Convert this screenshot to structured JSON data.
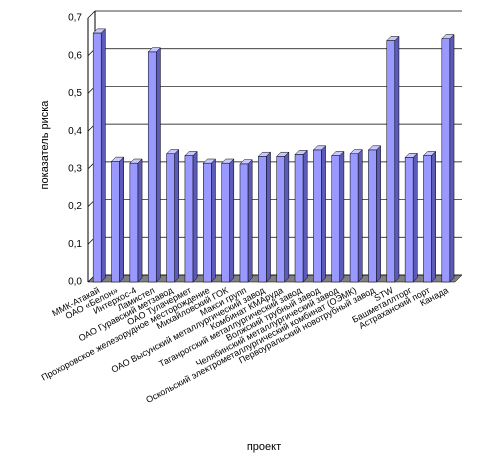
{
  "chart_data": {
    "type": "bar",
    "categories": [
      "ММК-Атакай",
      "ОАО «Белон»",
      "Интерхос-4",
      "Ламистел",
      "ОАО Гуравский метзавод",
      "ОАО Тулачермет",
      "Прохоровское железорудное месторождение",
      "Михайловский ГОК",
      "Макси групп",
      "ОАО Высунский металлургический завод",
      "Комбинат КМАруда",
      "Таганрогский металлургический завод",
      "Волжский трубный завод",
      "Челябинский металлургический завод",
      "Оскольский электрометаллургический комбинат (ОЭМК)",
      "Первоуральский новотрубный завод",
      "STW",
      "Башметаллторг",
      "Астраханский порт",
      "Канада"
    ],
    "values": [
      0.66,
      0.32,
      0.315,
      0.61,
      0.34,
      0.335,
      0.315,
      0.315,
      0.313,
      0.333,
      0.333,
      0.338,
      0.35,
      0.335,
      0.34,
      0.35,
      0.64,
      0.33,
      0.335,
      0.645
    ],
    "color": "#9999ff",
    "ylabel": "показатель риска",
    "xlabel": "проект",
    "ylim": [
      0,
      0.7
    ],
    "yticks": [
      {
        "value": 0,
        "label": "0,0"
      },
      {
        "value": 0.1,
        "label": "0,1"
      },
      {
        "value": 0.2,
        "label": "0,2"
      },
      {
        "value": 0.3,
        "label": "0,3"
      },
      {
        "value": 0.4,
        "label": "0,4"
      },
      {
        "value": 0.5,
        "label": "0,5"
      },
      {
        "value": 0.6,
        "label": "0,6"
      },
      {
        "value": 0.7,
        "label": "0,7"
      }
    ],
    "grid": true
  }
}
